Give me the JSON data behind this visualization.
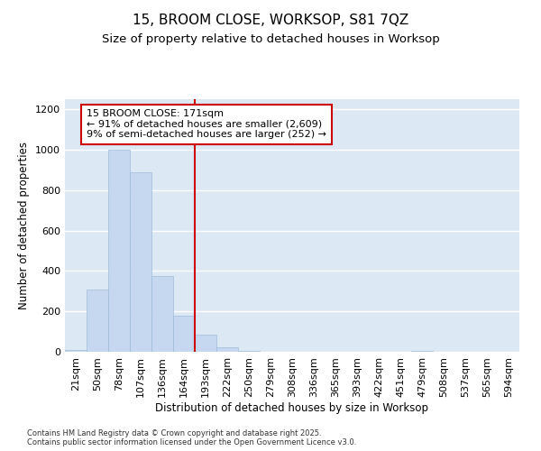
{
  "title1": "15, BROOM CLOSE, WORKSOP, S81 7QZ",
  "title2": "Size of property relative to detached houses in Worksop",
  "xlabel": "Distribution of detached houses by size in Worksop",
  "ylabel": "Number of detached properties",
  "categories": [
    "21sqm",
    "50sqm",
    "78sqm",
    "107sqm",
    "136sqm",
    "164sqm",
    "193sqm",
    "222sqm",
    "250sqm",
    "279sqm",
    "308sqm",
    "336sqm",
    "365sqm",
    "393sqm",
    "422sqm",
    "451sqm",
    "479sqm",
    "508sqm",
    "537sqm",
    "565sqm",
    "594sqm"
  ],
  "values": [
    10,
    310,
    1000,
    890,
    375,
    180,
    85,
    22,
    5,
    0,
    0,
    0,
    0,
    0,
    0,
    0,
    5,
    0,
    0,
    0,
    0
  ],
  "bar_color": "#c5d8f0",
  "bar_edge_color": "#a0bcd8",
  "property_line_x": 5.5,
  "annotation_text": "15 BROOM CLOSE: 171sqm\n← 91% of detached houses are smaller (2,609)\n9% of semi-detached houses are larger (252) →",
  "annotation_box_color": "#ffffff",
  "annotation_box_edge": "#cc0000",
  "vline_color": "#cc0000",
  "ylim": [
    0,
    1250
  ],
  "yticks": [
    0,
    200,
    400,
    600,
    800,
    1000,
    1200
  ],
  "background_color": "#dde8f5",
  "footer": "Contains HM Land Registry data © Crown copyright and database right 2025.\nContains public sector information licensed under the Open Government Licence v3.0.",
  "title_fontsize": 11,
  "subtitle_fontsize": 9.5,
  "axis_label_fontsize": 8.5,
  "tick_fontsize": 8,
  "footer_fontsize": 6,
  "annotation_fontsize": 8
}
